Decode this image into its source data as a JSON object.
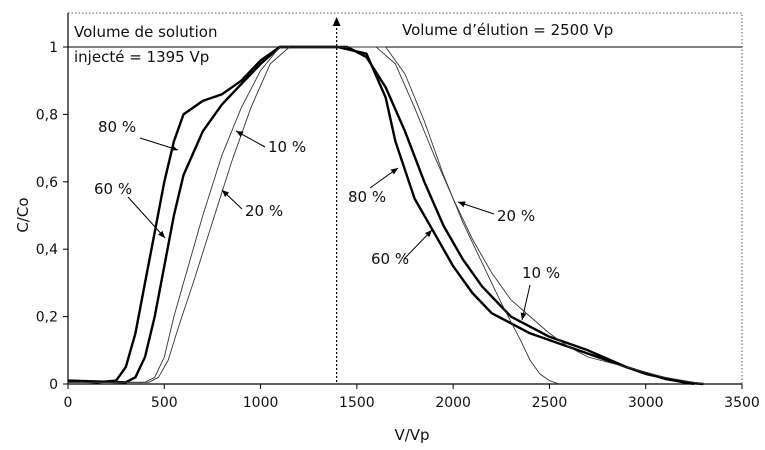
{
  "chart_data": {
    "type": "line",
    "xlabel": "V/Vp",
    "ylabel": "C/Co",
    "xlim": [
      0,
      3500
    ],
    "ylim": [
      0,
      1.05
    ],
    "x_ticks": [
      0,
      500,
      1000,
      1500,
      2000,
      2500,
      3000,
      3500
    ],
    "y_ticks": [
      0,
      0.2,
      0.4,
      0.6,
      0.8,
      1
    ],
    "y_tick_labels": [
      "0",
      "0,2",
      "0,4",
      "0,6",
      "0,8",
      "1"
    ],
    "reference_line_y": 1,
    "injection_volume_x": 1395,
    "annotations": {
      "injected": [
        "Volume de solution",
        "injecté = 1395 Vp"
      ],
      "elution": "Volume d’élution = 2500 Vp"
    },
    "series": [
      {
        "name": "80 %",
        "line": "thick",
        "points": [
          [
            0,
            0.01
          ],
          [
            150,
            0.005
          ],
          [
            250,
            0.01
          ],
          [
            300,
            0.05
          ],
          [
            350,
            0.15
          ],
          [
            400,
            0.3
          ],
          [
            450,
            0.45
          ],
          [
            500,
            0.6
          ],
          [
            550,
            0.72
          ],
          [
            600,
            0.8
          ],
          [
            700,
            0.84
          ],
          [
            800,
            0.86
          ],
          [
            900,
            0.9
          ],
          [
            1000,
            0.96
          ],
          [
            1100,
            1
          ],
          [
            1400,
            1
          ],
          [
            1550,
            0.98
          ],
          [
            1650,
            0.85
          ],
          [
            1700,
            0.72
          ],
          [
            1800,
            0.55
          ],
          [
            1900,
            0.45
          ],
          [
            2000,
            0.35
          ],
          [
            2100,
            0.27
          ],
          [
            2200,
            0.21
          ],
          [
            2400,
            0.15
          ],
          [
            2600,
            0.11
          ],
          [
            2800,
            0.07
          ],
          [
            3000,
            0.03
          ],
          [
            3200,
            0.005
          ],
          [
            3300,
            0
          ]
        ]
      },
      {
        "name": "60 %",
        "line": "thick",
        "points": [
          [
            0,
            0.01
          ],
          [
            300,
            0.005
          ],
          [
            350,
            0.02
          ],
          [
            400,
            0.08
          ],
          [
            450,
            0.2
          ],
          [
            500,
            0.35
          ],
          [
            550,
            0.5
          ],
          [
            600,
            0.62
          ],
          [
            700,
            0.75
          ],
          [
            800,
            0.83
          ],
          [
            900,
            0.89
          ],
          [
            1000,
            0.95
          ],
          [
            1100,
            1
          ],
          [
            1450,
            1
          ],
          [
            1550,
            0.97
          ],
          [
            1650,
            0.88
          ],
          [
            1750,
            0.75
          ],
          [
            1850,
            0.6
          ],
          [
            1950,
            0.47
          ],
          [
            2050,
            0.37
          ],
          [
            2150,
            0.29
          ],
          [
            2300,
            0.2
          ],
          [
            2500,
            0.14
          ],
          [
            2700,
            0.1
          ],
          [
            2900,
            0.05
          ],
          [
            3100,
            0.015
          ],
          [
            3250,
            0
          ]
        ]
      },
      {
        "name": "20 %",
        "line": "thin",
        "points": [
          [
            0,
            0.005
          ],
          [
            400,
            0.005
          ],
          [
            450,
            0.02
          ],
          [
            500,
            0.08
          ],
          [
            550,
            0.2
          ],
          [
            600,
            0.3
          ],
          [
            700,
            0.5
          ],
          [
            800,
            0.68
          ],
          [
            900,
            0.82
          ],
          [
            1000,
            0.93
          ],
          [
            1100,
            1
          ],
          [
            1600,
            1
          ],
          [
            1700,
            0.95
          ],
          [
            1800,
            0.82
          ],
          [
            1900,
            0.68
          ],
          [
            2000,
            0.55
          ],
          [
            2100,
            0.43
          ],
          [
            2200,
            0.33
          ],
          [
            2300,
            0.25
          ],
          [
            2400,
            0.2
          ],
          [
            2500,
            0.15
          ],
          [
            2600,
            0.11
          ],
          [
            2700,
            0.08
          ],
          [
            2900,
            0.05
          ],
          [
            3100,
            0.02
          ],
          [
            3300,
            0
          ]
        ]
      },
      {
        "name": "10 %",
        "line": "thin",
        "points": [
          [
            0,
            0.005
          ],
          [
            420,
            0.005
          ],
          [
            470,
            0.02
          ],
          [
            520,
            0.07
          ],
          [
            580,
            0.18
          ],
          [
            650,
            0.3
          ],
          [
            750,
            0.48
          ],
          [
            850,
            0.66
          ],
          [
            950,
            0.82
          ],
          [
            1050,
            0.95
          ],
          [
            1150,
            1
          ],
          [
            1650,
            1
          ],
          [
            1750,
            0.92
          ],
          [
            1850,
            0.78
          ],
          [
            1950,
            0.62
          ],
          [
            2050,
            0.48
          ],
          [
            2150,
            0.36
          ],
          [
            2250,
            0.24
          ],
          [
            2350,
            0.13
          ],
          [
            2400,
            0.07
          ],
          [
            2450,
            0.03
          ],
          [
            2500,
            0.01
          ],
          [
            2550,
            0
          ]
        ]
      }
    ],
    "series_label_text": [
      "80 %",
      "60 %",
      "20 %",
      "10 %",
      "80 %",
      "60 %",
      "20 %",
      "10 %"
    ]
  }
}
